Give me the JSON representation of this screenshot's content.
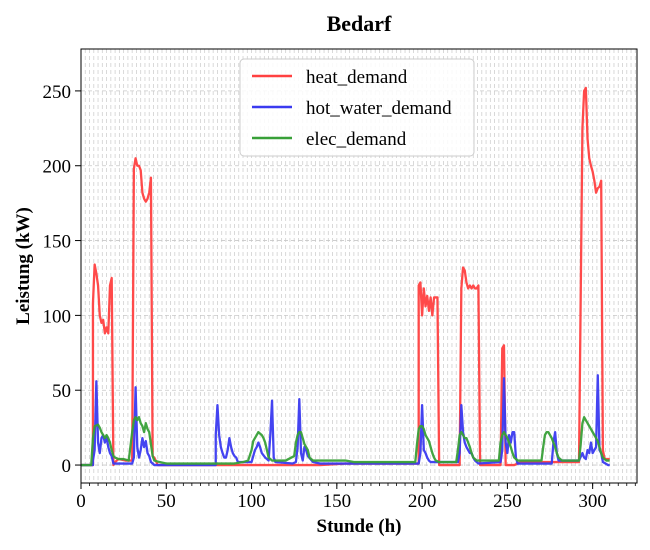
{
  "chart_data": {
    "type": "line",
    "title": "Bedarf",
    "xlabel": "Stunde (h)",
    "ylabel": "Leistung (kW)",
    "xlim": [
      0,
      326
    ],
    "ylim": [
      -12,
      278
    ],
    "xticks": [
      0,
      50,
      100,
      150,
      200,
      250,
      300
    ],
    "yticks": [
      0,
      50,
      100,
      150,
      200,
      250
    ],
    "x_minor_step": 5,
    "x_grid_step": 2.5,
    "grid": true,
    "legend_position": "top-center",
    "series": [
      {
        "name": "heat_demand",
        "color": "#ff4040",
        "points": [
          [
            0,
            0
          ],
          [
            7,
            0
          ],
          [
            7,
            108
          ],
          [
            8,
            134
          ],
          [
            9,
            128
          ],
          [
            10,
            120
          ],
          [
            11,
            100
          ],
          [
            12,
            95
          ],
          [
            13,
            97
          ],
          [
            14,
            88
          ],
          [
            15,
            92
          ],
          [
            16,
            88
          ],
          [
            17,
            120
          ],
          [
            18,
            125
          ],
          [
            19,
            0
          ],
          [
            20,
            2
          ],
          [
            22,
            4
          ],
          [
            26,
            3
          ],
          [
            30,
            3
          ],
          [
            31,
            198
          ],
          [
            32,
            205
          ],
          [
            33,
            200
          ],
          [
            34,
            200
          ],
          [
            35,
            197
          ],
          [
            36,
            182
          ],
          [
            37,
            178
          ],
          [
            38,
            176
          ],
          [
            39,
            178
          ],
          [
            40,
            182
          ],
          [
            41,
            192
          ],
          [
            42,
            6
          ],
          [
            43,
            5
          ],
          [
            45,
            0
          ],
          [
            48,
            0
          ],
          [
            50,
            0
          ],
          [
            100,
            0
          ],
          [
            140,
            0
          ],
          [
            155,
            1
          ],
          [
            198,
            1
          ],
          [
            198,
            120
          ],
          [
            199,
            122
          ],
          [
            200,
            100
          ],
          [
            201,
            118
          ],
          [
            202,
            106
          ],
          [
            203,
            113
          ],
          [
            204,
            103
          ],
          [
            205,
            112
          ],
          [
            206,
            100
          ],
          [
            207,
            112
          ],
          [
            208,
            112
          ],
          [
            209,
            112
          ],
          [
            210,
            0
          ],
          [
            222,
            0
          ],
          [
            223,
            118
          ],
          [
            224,
            132
          ],
          [
            225,
            130
          ],
          [
            226,
            122
          ],
          [
            227,
            118
          ],
          [
            228,
            120
          ],
          [
            229,
            118
          ],
          [
            230,
            120
          ],
          [
            231,
            118
          ],
          [
            232,
            118
          ],
          [
            233,
            120
          ],
          [
            234,
            0
          ],
          [
            246,
            0
          ],
          [
            247,
            78
          ],
          [
            248,
            80
          ],
          [
            249,
            0
          ],
          [
            254,
            0
          ],
          [
            258,
            2
          ],
          [
            280,
            2
          ],
          [
            292,
            2
          ],
          [
            294,
            225
          ],
          [
            295,
            250
          ],
          [
            296,
            252
          ],
          [
            297,
            218
          ],
          [
            298,
            205
          ],
          [
            299,
            200
          ],
          [
            300,
            196
          ],
          [
            301,
            190
          ],
          [
            302,
            182
          ],
          [
            303,
            185
          ],
          [
            304,
            186
          ],
          [
            305,
            190
          ],
          [
            306,
            10
          ],
          [
            307,
            4
          ],
          [
            310,
            4
          ]
        ]
      },
      {
        "name": "hot_water_demand",
        "color": "#3a3af0",
        "points": [
          [
            0,
            0
          ],
          [
            7,
            0
          ],
          [
            7,
            3
          ],
          [
            8,
            10
          ],
          [
            9,
            56
          ],
          [
            10,
            15
          ],
          [
            11,
            8
          ],
          [
            12,
            18
          ],
          [
            13,
            20
          ],
          [
            14,
            15
          ],
          [
            15,
            19
          ],
          [
            16,
            12
          ],
          [
            17,
            8
          ],
          [
            18,
            6
          ],
          [
            19,
            1
          ],
          [
            30,
            1
          ],
          [
            31,
            5
          ],
          [
            32,
            52
          ],
          [
            33,
            12
          ],
          [
            34,
            5
          ],
          [
            35,
            10
          ],
          [
            36,
            18
          ],
          [
            37,
            12
          ],
          [
            38,
            16
          ],
          [
            39,
            8
          ],
          [
            40,
            6
          ],
          [
            41,
            2
          ],
          [
            43,
            0
          ],
          [
            79,
            0
          ],
          [
            79,
            20
          ],
          [
            80,
            40
          ],
          [
            81,
            20
          ],
          [
            82,
            12
          ],
          [
            83,
            8
          ],
          [
            84,
            5
          ],
          [
            85,
            5
          ],
          [
            86,
            10
          ],
          [
            87,
            18
          ],
          [
            88,
            12
          ],
          [
            89,
            8
          ],
          [
            90,
            6
          ],
          [
            91,
            5
          ],
          [
            92,
            2
          ],
          [
            100,
            2
          ],
          [
            102,
            10
          ],
          [
            103,
            12
          ],
          [
            104,
            15
          ],
          [
            105,
            12
          ],
          [
            106,
            8
          ],
          [
            108,
            5
          ],
          [
            110,
            3
          ],
          [
            111,
            20
          ],
          [
            112,
            43
          ],
          [
            113,
            5
          ],
          [
            114,
            2
          ],
          [
            124,
            1
          ],
          [
            126,
            2
          ],
          [
            127,
            12
          ],
          [
            128,
            44
          ],
          [
            129,
            8
          ],
          [
            130,
            3
          ],
          [
            131,
            12
          ],
          [
            132,
            10
          ],
          [
            133,
            6
          ],
          [
            136,
            2
          ],
          [
            140,
            1
          ],
          [
            145,
            1
          ],
          [
            198,
            1
          ],
          [
            199,
            8
          ],
          [
            200,
            40
          ],
          [
            201,
            10
          ],
          [
            202,
            8
          ],
          [
            203,
            5
          ],
          [
            204,
            3
          ],
          [
            205,
            2
          ],
          [
            221,
            2
          ],
          [
            222,
            8
          ],
          [
            223,
            40
          ],
          [
            224,
            22
          ],
          [
            225,
            15
          ],
          [
            226,
            12
          ],
          [
            227,
            10
          ],
          [
            228,
            8
          ],
          [
            229,
            8
          ],
          [
            230,
            5
          ],
          [
            231,
            3
          ],
          [
            232,
            2
          ],
          [
            233,
            1
          ],
          [
            246,
            2
          ],
          [
            247,
            10
          ],
          [
            248,
            58
          ],
          [
            249,
            15
          ],
          [
            250,
            8
          ],
          [
            251,
            20
          ],
          [
            252,
            15
          ],
          [
            253,
            22
          ],
          [
            254,
            22
          ],
          [
            255,
            5
          ],
          [
            256,
            1
          ],
          [
            276,
            1
          ],
          [
            277,
            15
          ],
          [
            278,
            22
          ],
          [
            279,
            8
          ],
          [
            280,
            3
          ],
          [
            292,
            3
          ],
          [
            294,
            8
          ],
          [
            295,
            5
          ],
          [
            296,
            4
          ],
          [
            297,
            10
          ],
          [
            298,
            8
          ],
          [
            299,
            15
          ],
          [
            300,
            8
          ],
          [
            301,
            10
          ],
          [
            302,
            12
          ],
          [
            303,
            60
          ],
          [
            304,
            10
          ],
          [
            305,
            8
          ],
          [
            306,
            2
          ],
          [
            309,
            0
          ],
          [
            310,
            0
          ]
        ]
      },
      {
        "name": "elec_demand",
        "color": "#38a038",
        "points": [
          [
            0,
            0
          ],
          [
            6,
            0
          ],
          [
            7,
            18
          ],
          [
            8,
            26
          ],
          [
            10,
            27
          ],
          [
            11,
            25
          ],
          [
            12,
            22
          ],
          [
            13,
            20
          ],
          [
            14,
            18
          ],
          [
            15,
            20
          ],
          [
            16,
            18
          ],
          [
            17,
            15
          ],
          [
            18,
            10
          ],
          [
            19,
            6
          ],
          [
            20,
            5
          ],
          [
            22,
            4
          ],
          [
            25,
            4
          ],
          [
            28,
            3
          ],
          [
            30,
            22
          ],
          [
            31,
            30
          ],
          [
            32,
            32
          ],
          [
            33,
            30
          ],
          [
            34,
            32
          ],
          [
            35,
            28
          ],
          [
            36,
            26
          ],
          [
            37,
            22
          ],
          [
            38,
            28
          ],
          [
            39,
            24
          ],
          [
            40,
            22
          ],
          [
            41,
            14
          ],
          [
            42,
            6
          ],
          [
            43,
            3
          ],
          [
            46,
            2
          ],
          [
            50,
            1
          ],
          [
            90,
            1
          ],
          [
            95,
            2
          ],
          [
            98,
            3
          ],
          [
            100,
            10
          ],
          [
            101,
            16
          ],
          [
            102,
            18
          ],
          [
            103,
            20
          ],
          [
            104,
            22
          ],
          [
            105,
            21
          ],
          [
            106,
            20
          ],
          [
            107,
            18
          ],
          [
            108,
            15
          ],
          [
            109,
            10
          ],
          [
            110,
            5
          ],
          [
            112,
            3
          ],
          [
            115,
            3
          ],
          [
            120,
            3
          ],
          [
            125,
            6
          ],
          [
            126,
            15
          ],
          [
            127,
            20
          ],
          [
            128,
            22
          ],
          [
            129,
            22
          ],
          [
            130,
            18
          ],
          [
            131,
            14
          ],
          [
            132,
            12
          ],
          [
            133,
            10
          ],
          [
            134,
            5
          ],
          [
            136,
            3
          ],
          [
            140,
            3
          ],
          [
            155,
            3
          ],
          [
            160,
            2
          ],
          [
            196,
            2
          ],
          [
            197,
            14
          ],
          [
            198,
            24
          ],
          [
            199,
            26
          ],
          [
            200,
            26
          ],
          [
            201,
            24
          ],
          [
            202,
            20
          ],
          [
            203,
            18
          ],
          [
            204,
            16
          ],
          [
            205,
            12
          ],
          [
            206,
            8
          ],
          [
            207,
            5
          ],
          [
            208,
            3
          ],
          [
            210,
            2
          ],
          [
            220,
            2
          ],
          [
            221,
            10
          ],
          [
            222,
            20
          ],
          [
            223,
            22
          ],
          [
            224,
            20
          ],
          [
            225,
            18
          ],
          [
            226,
            18
          ],
          [
            227,
            15
          ],
          [
            228,
            12
          ],
          [
            229,
            8
          ],
          [
            230,
            5
          ],
          [
            232,
            3
          ],
          [
            245,
            3
          ],
          [
            246,
            15
          ],
          [
            247,
            20
          ],
          [
            248,
            22
          ],
          [
            249,
            20
          ],
          [
            250,
            18
          ],
          [
            251,
            15
          ],
          [
            252,
            12
          ],
          [
            253,
            8
          ],
          [
            254,
            5
          ],
          [
            256,
            3
          ],
          [
            270,
            3
          ],
          [
            271,
            12
          ],
          [
            272,
            20
          ],
          [
            273,
            22
          ],
          [
            274,
            22
          ],
          [
            275,
            20
          ],
          [
            276,
            18
          ],
          [
            277,
            15
          ],
          [
            278,
            12
          ],
          [
            279,
            8
          ],
          [
            280,
            5
          ],
          [
            282,
            3
          ],
          [
            292,
            3
          ],
          [
            293,
            14
          ],
          [
            294,
            28
          ],
          [
            295,
            32
          ],
          [
            296,
            30
          ],
          [
            297,
            28
          ],
          [
            298,
            26
          ],
          [
            299,
            24
          ],
          [
            300,
            22
          ],
          [
            301,
            20
          ],
          [
            302,
            18
          ],
          [
            303,
            16
          ],
          [
            304,
            12
          ],
          [
            305,
            8
          ],
          [
            306,
            5
          ],
          [
            308,
            3
          ],
          [
            310,
            3
          ]
        ]
      }
    ]
  }
}
